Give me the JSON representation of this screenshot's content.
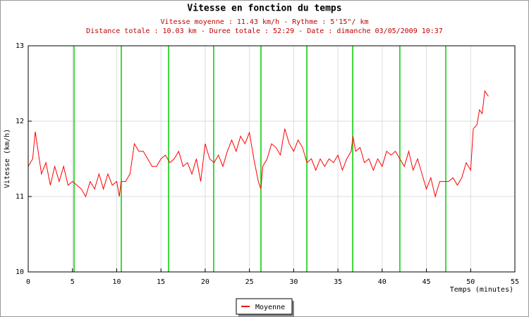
{
  "chart_data": {
    "type": "line",
    "title": "Vitesse en fonction du temps",
    "subtitle": [
      "Vitesse moyenne : 11.43 km/h - Rythme : 5'15\"/ km",
      "Distance totale : 10.03 km - Duree totale : 52:29 - Date : dimanche 03/05/2009 10:37"
    ],
    "ylabel": "Vitesse (km/h)",
    "xlabel": "Temps (minutes)",
    "xlim": [
      0,
      55
    ],
    "ylim": [
      10,
      13
    ],
    "xticks": [
      0,
      5,
      10,
      15,
      20,
      25,
      30,
      35,
      40,
      45,
      50,
      55
    ],
    "yticks": [
      10,
      11,
      12,
      13
    ],
    "grid": true,
    "legend": "bottom",
    "vlines": {
      "color": "#00cc00",
      "x": [
        5.18,
        10.52,
        15.86,
        20.96,
        26.3,
        31.49,
        36.67,
        42.0,
        47.19
      ]
    },
    "series": [
      {
        "name": "Moyenne",
        "color": "#ff0000",
        "x": [
          0,
          0.5,
          0.8,
          1.5,
          2,
          2.5,
          3,
          3.5,
          4,
          4.5,
          5,
          5.5,
          6,
          6.5,
          7,
          7.5,
          8,
          8.5,
          9,
          9.5,
          10,
          10.3,
          10.5,
          11,
          11.5,
          12,
          12.5,
          13,
          13.5,
          14,
          14.5,
          15,
          15.5,
          16,
          16.5,
          17,
          17.5,
          18,
          18.5,
          19,
          19.5,
          20,
          20.5,
          21,
          21.5,
          22,
          22.5,
          23,
          23.5,
          24,
          24.5,
          25,
          25.5,
          26,
          26.3,
          26.5,
          27,
          27.5,
          28,
          28.5,
          29,
          29.5,
          30,
          30.5,
          31,
          31.5,
          32,
          32.5,
          33,
          33.5,
          34,
          34.5,
          35,
          35.5,
          36,
          36.5,
          36.7,
          37,
          37.5,
          38,
          38.5,
          39,
          39.5,
          40,
          40.5,
          41,
          41.5,
          42,
          42.5,
          43,
          43.5,
          44,
          44.5,
          45,
          45.5,
          46,
          46.5,
          47,
          47.5,
          48,
          48.5,
          49,
          49.5,
          50,
          50.3,
          50.7,
          51,
          51.3,
          51.6,
          52
        ],
        "values": [
          11.4,
          11.5,
          11.86,
          11.3,
          11.45,
          11.15,
          11.4,
          11.2,
          11.4,
          11.15,
          11.2,
          11.15,
          11.1,
          11.0,
          11.2,
          11.1,
          11.3,
          11.1,
          11.3,
          11.15,
          11.2,
          11.0,
          11.2,
          11.2,
          11.3,
          11.7,
          11.6,
          11.6,
          11.5,
          11.4,
          11.4,
          11.5,
          11.55,
          11.45,
          11.5,
          11.6,
          11.4,
          11.45,
          11.3,
          11.5,
          11.2,
          11.7,
          11.5,
          11.45,
          11.55,
          11.4,
          11.6,
          11.75,
          11.6,
          11.8,
          11.7,
          11.85,
          11.5,
          11.2,
          11.1,
          11.4,
          11.5,
          11.7,
          11.65,
          11.55,
          11.9,
          11.7,
          11.6,
          11.75,
          11.65,
          11.45,
          11.5,
          11.35,
          11.5,
          11.4,
          11.5,
          11.45,
          11.55,
          11.35,
          11.5,
          11.6,
          11.8,
          11.6,
          11.65,
          11.45,
          11.5,
          11.35,
          11.5,
          11.4,
          11.6,
          11.55,
          11.6,
          11.5,
          11.4,
          11.6,
          11.35,
          11.5,
          11.3,
          11.1,
          11.25,
          11.0,
          11.2,
          11.2,
          11.2,
          11.25,
          11.15,
          11.25,
          11.45,
          11.35,
          11.9,
          11.95,
          12.15,
          12.1,
          12.4,
          12.33
        ]
      }
    ]
  }
}
